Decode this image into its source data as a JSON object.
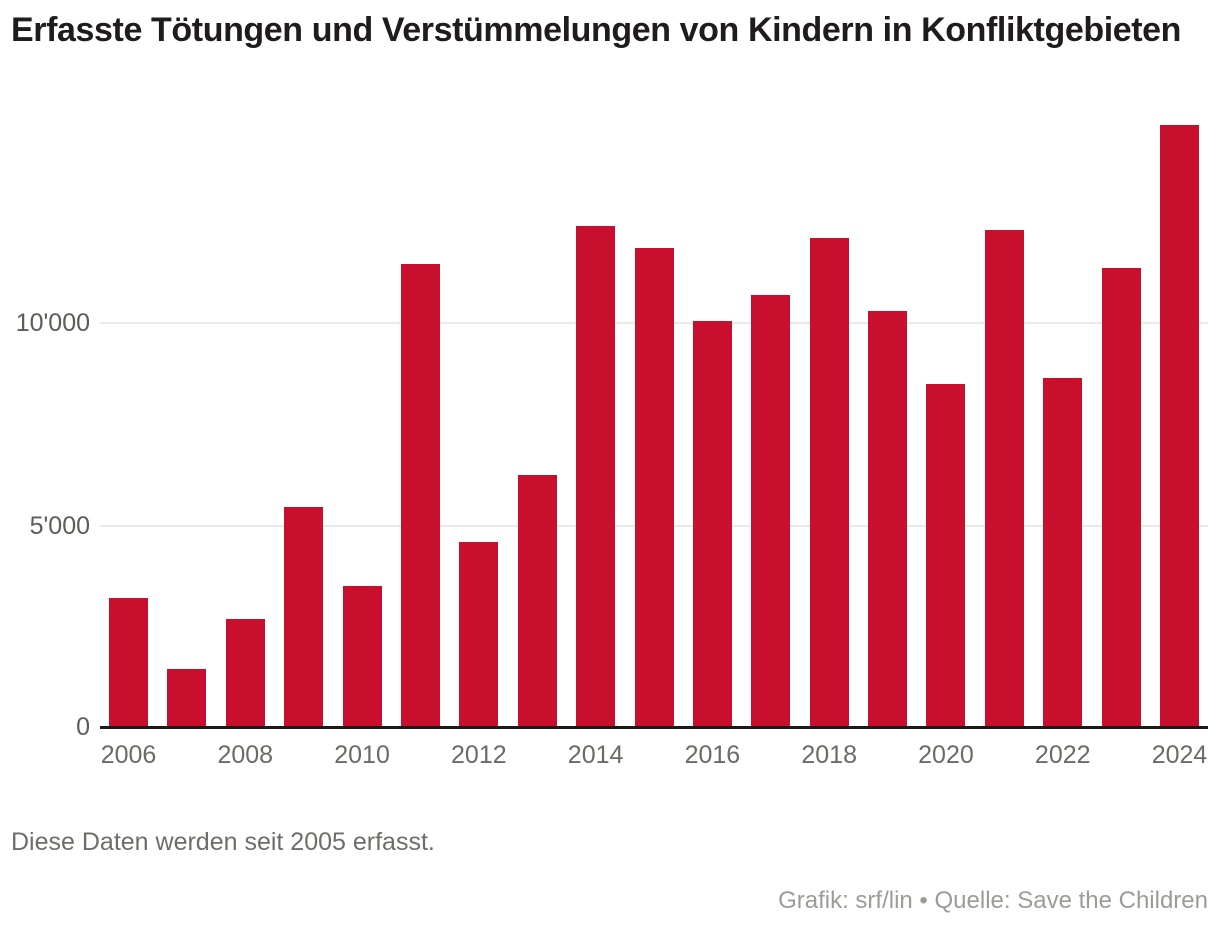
{
  "title": "Erfasste Tötungen und Verstümmelungen von Kindern in Konfliktgebieten",
  "footnote": "Diese Daten werden seit 2005 erfasst.",
  "credits": "Grafik: srf/lin • Quelle: Save the Children",
  "colors": {
    "bar": "#c8102e",
    "gridline": "#e9e9e7",
    "axis": "#1c1a19",
    "tick_text": "#6b6b65",
    "footnote_text": "#6e6e68",
    "credits_text": "#9c9c97"
  },
  "chart_data": {
    "type": "bar",
    "title": "Erfasste Tötungen und Verstümmelungen von Kindern in Konfliktgebieten",
    "categories": [
      "2006",
      "2007",
      "2008",
      "2009",
      "2010",
      "2011",
      "2012",
      "2013",
      "2014",
      "2015",
      "2016",
      "2017",
      "2018",
      "2019",
      "2020",
      "2021",
      "2022",
      "2023",
      "2024"
    ],
    "values": [
      3200,
      1450,
      2700,
      5450,
      3500,
      11450,
      4600,
      6250,
      12400,
      11850,
      10050,
      10700,
      12100,
      10300,
      8500,
      12300,
      8650,
      11350,
      14900
    ],
    "xlabel": "",
    "ylabel": "",
    "ylim": [
      0,
      15000
    ],
    "yticks": [
      {
        "value": 0,
        "label": "0"
      },
      {
        "value": 5000,
        "label": "5'000"
      },
      {
        "value": 10000,
        "label": "10'000"
      }
    ],
    "xticks": [
      "2006",
      "2008",
      "2010",
      "2012",
      "2014",
      "2016",
      "2018",
      "2020",
      "2022",
      "2024"
    ],
    "grid": true,
    "legend": "none",
    "bar_color": "#c8102e"
  }
}
